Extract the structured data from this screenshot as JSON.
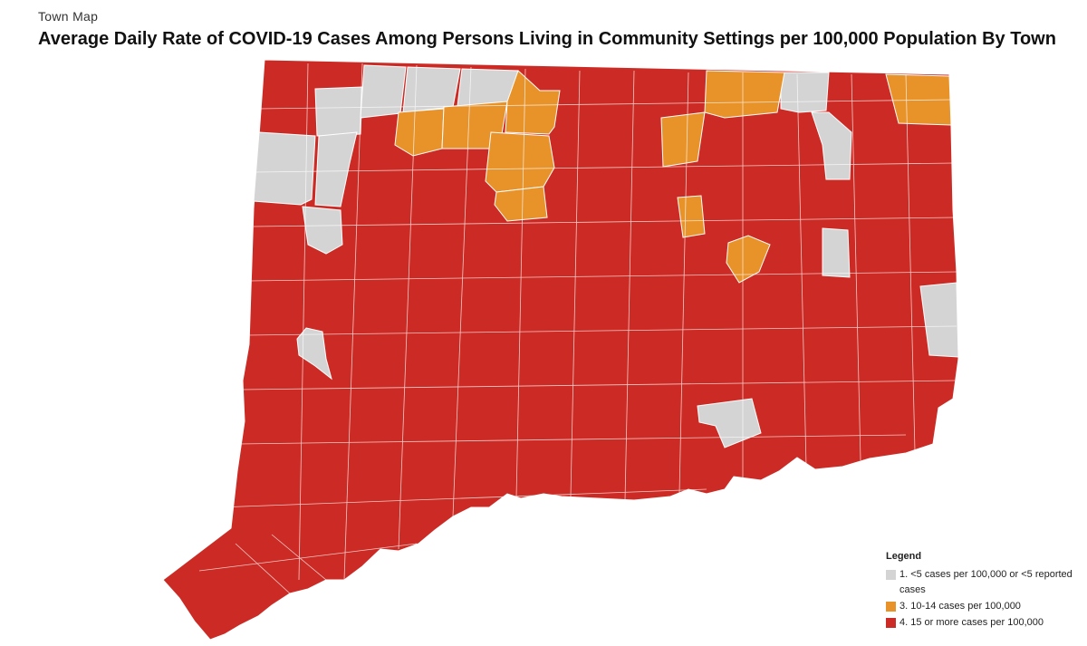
{
  "header": {
    "eyebrow": "Town Map",
    "title": "Average Daily Rate of COVID-19 Cases Among Persons Living in Community Settings per 100,000 Population By Town"
  },
  "colors": {
    "low": "#d4d4d4",
    "mid": "#e8922a",
    "high": "#cc2a24",
    "border": "#ffffff"
  },
  "legend": {
    "title": "Legend",
    "items": [
      {
        "label": "1. <5 cases per 100,000 or <5 reported cases",
        "color": "#d4d4d4"
      },
      {
        "label": "3. 10-14 cases per 100,000",
        "color": "#e8922a"
      },
      {
        "label": "4. 15 or more cases per 100,000",
        "color": "#cc2a24"
      }
    ]
  }
}
